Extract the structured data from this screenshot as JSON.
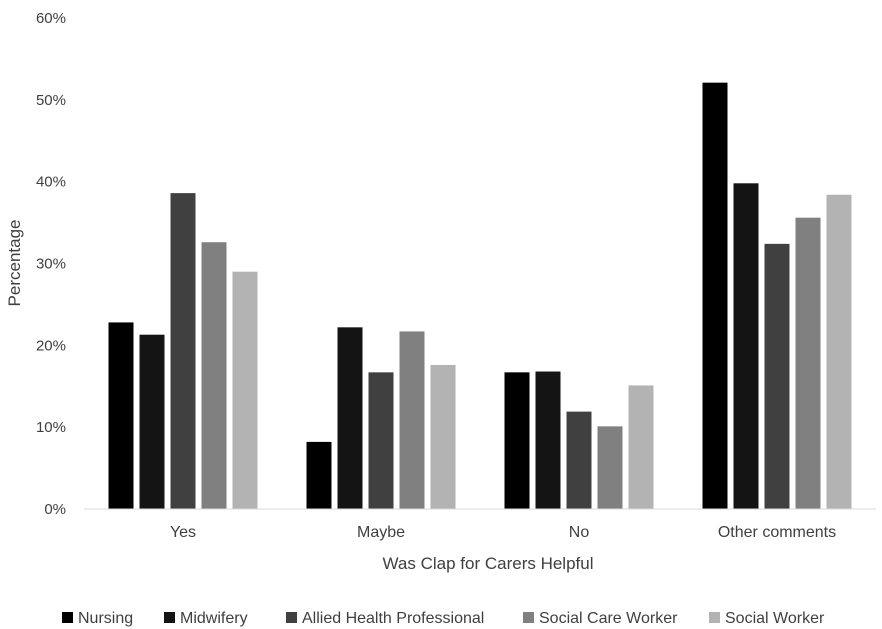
{
  "chart_data": {
    "type": "bar",
    "title": "",
    "xlabel": "Was Clap for Carers Helpful",
    "ylabel": "Percentage",
    "ylim": [
      0,
      60
    ],
    "yticks": [
      "0%",
      "10%",
      "20%",
      "30%",
      "40%",
      "50%",
      "60%"
    ],
    "ytick_values": [
      0,
      10,
      20,
      30,
      40,
      50,
      60
    ],
    "grid": false,
    "legend_position": "bottom",
    "categories": [
      "Yes",
      "Maybe",
      "No",
      "Other comments"
    ],
    "series": [
      {
        "name": "Nursing",
        "color": "#000000",
        "values": [
          22.8,
          8.2,
          16.7,
          52.1
        ]
      },
      {
        "name": "Midwifery",
        "color": "#141414",
        "values": [
          21.3,
          22.2,
          16.8,
          39.8
        ]
      },
      {
        "name": "Allied Health Professional",
        "color": "#404040",
        "values": [
          38.6,
          16.7,
          11.9,
          32.4
        ]
      },
      {
        "name": "Social Care Worker",
        "color": "#808080",
        "values": [
          32.6,
          21.7,
          10.1,
          35.6
        ]
      },
      {
        "name": "Social Worker",
        "color": "#b3b3b3",
        "values": [
          29.0,
          17.6,
          15.1,
          38.4
        ]
      }
    ]
  }
}
